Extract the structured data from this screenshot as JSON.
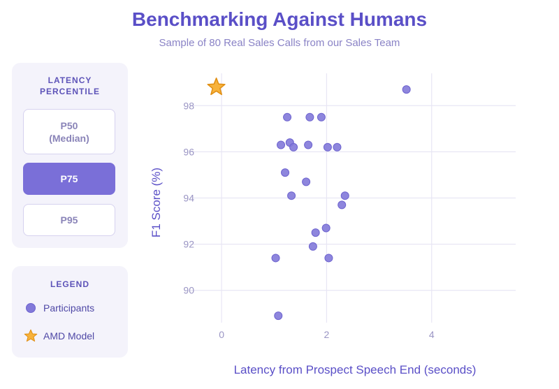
{
  "title": "Benchmarking Against Humans",
  "subtitle": "Sample of 80 Real Sales Calls from our Sales Team",
  "latency_panel": {
    "heading": "LATENCY\nPERCENTILE",
    "buttons": [
      {
        "label": "P50\n(Median)",
        "active": false
      },
      {
        "label": "P75",
        "active": true
      },
      {
        "label": "P95",
        "active": false
      }
    ]
  },
  "legend_panel": {
    "heading": "LEGEND",
    "items": [
      {
        "label": "Participants",
        "icon": "circle-marker-icon"
      },
      {
        "label": "AMD Model",
        "icon": "star-icon"
      }
    ]
  },
  "colors": {
    "accent": "#5a4fc7",
    "participant": "#8279d9",
    "model_star": "#f5a623",
    "grid": "#e8e6f4"
  },
  "chart_data": {
    "type": "scatter",
    "xlabel": "Latency from Prospect Speech End (seconds)",
    "ylabel": "F1 Score (%)",
    "xlim": [
      -0.6,
      5.6
    ],
    "ylim": [
      88.6,
      99.4
    ],
    "x_ticks": [
      0,
      2,
      4
    ],
    "y_ticks": [
      90,
      92,
      94,
      96,
      98
    ],
    "grid": true,
    "series": [
      {
        "name": "Participants",
        "marker": "circle",
        "points": [
          {
            "x": 1.25,
            "y": 97.5
          },
          {
            "x": 1.68,
            "y": 97.5
          },
          {
            "x": 1.9,
            "y": 97.5
          },
          {
            "x": 3.52,
            "y": 98.7
          },
          {
            "x": 1.13,
            "y": 96.3
          },
          {
            "x": 1.3,
            "y": 96.4
          },
          {
            "x": 1.37,
            "y": 96.2
          },
          {
            "x": 1.65,
            "y": 96.3
          },
          {
            "x": 2.02,
            "y": 96.2
          },
          {
            "x": 2.2,
            "y": 96.2
          },
          {
            "x": 1.21,
            "y": 95.1
          },
          {
            "x": 1.61,
            "y": 94.7
          },
          {
            "x": 1.33,
            "y": 94.1
          },
          {
            "x": 2.35,
            "y": 94.1
          },
          {
            "x": 2.29,
            "y": 93.7
          },
          {
            "x": 1.79,
            "y": 92.5
          },
          {
            "x": 1.99,
            "y": 92.7
          },
          {
            "x": 1.74,
            "y": 91.9
          },
          {
            "x": 1.03,
            "y": 91.4
          },
          {
            "x": 2.04,
            "y": 91.4
          },
          {
            "x": 1.08,
            "y": 88.9
          }
        ]
      },
      {
        "name": "AMD Model",
        "marker": "star",
        "points": [
          {
            "x": -0.1,
            "y": 98.8
          }
        ]
      }
    ]
  }
}
